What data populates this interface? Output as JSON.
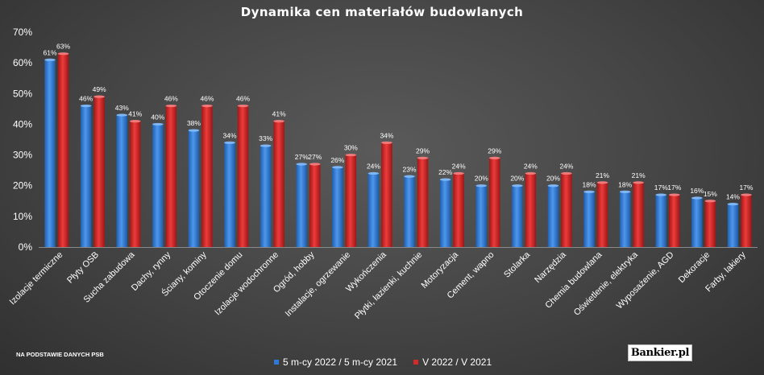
{
  "chart_data": {
    "type": "bar",
    "title": "Dynamika cen materiałów budowlanych",
    "categories": [
      "Izolacje termiczne",
      "Płyty OSB",
      "Sucha zabudowa",
      "Dachy, rynny",
      "Ściany, kominy",
      "Otoczenie domu",
      "Izolacje wodochronne",
      "Ogród, hobby",
      "Instalacje, ogrzewanie",
      "Wykończenia",
      "Płytki, łazienki, kuchnie",
      "Motoryzacja",
      "Cement, wapno",
      "Stolarka",
      "Narzędzia",
      "Chemia budowlana",
      "Oświetlenie, elektryka",
      "Wyposażenie, AGD",
      "Dekoracje",
      "Farby, lakiery"
    ],
    "series": [
      {
        "name": "5 m-cy 2022 / 5 m-cy 2021",
        "color": "#2e7ad6",
        "values": [
          61,
          46,
          43,
          40,
          38,
          34,
          33,
          27,
          26,
          24,
          23,
          22,
          20,
          20,
          20,
          18,
          18,
          17,
          16,
          14
        ]
      },
      {
        "name": "V 2022 / V 2021",
        "color": "#d42a2a",
        "values": [
          63,
          49,
          41,
          46,
          46,
          46,
          41,
          27,
          30,
          34,
          29,
          24,
          29,
          24,
          24,
          21,
          21,
          17,
          15,
          17
        ]
      }
    ],
    "data_label_suffix": "%",
    "ylim": [
      0,
      70
    ],
    "yticks": [
      0,
      10,
      20,
      30,
      40,
      50,
      60,
      70
    ],
    "ytick_labels": [
      "0%",
      "10%",
      "20%",
      "30%",
      "40%",
      "50%",
      "60%",
      "70%"
    ],
    "xlabel": "",
    "ylabel": "",
    "grid": false,
    "legend_position": "bottom"
  },
  "source_note": "NA PODSTAWIE DANYCH PSB",
  "logo_text": "Bankier.pl"
}
